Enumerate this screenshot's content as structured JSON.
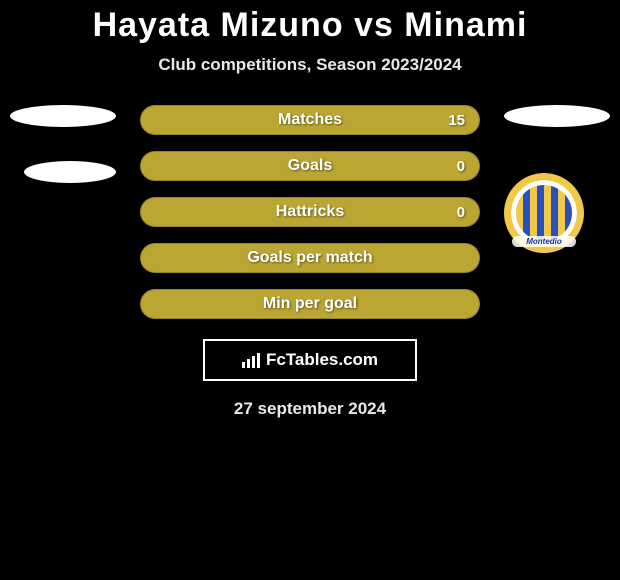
{
  "title": "Hayata Mizuno vs Minami",
  "subtitle": "Club competitions, Season 2023/2024",
  "bar_color": "#bba633",
  "stats": [
    {
      "label": "Matches",
      "value": "15"
    },
    {
      "label": "Goals",
      "value": "0"
    },
    {
      "label": "Hattricks",
      "value": "0"
    },
    {
      "label": "Goals per match",
      "value": ""
    },
    {
      "label": "Min per goal",
      "value": ""
    }
  ],
  "footer_brand": "FcTables.com",
  "badge_text": "Montedio",
  "date": "27 september 2024"
}
